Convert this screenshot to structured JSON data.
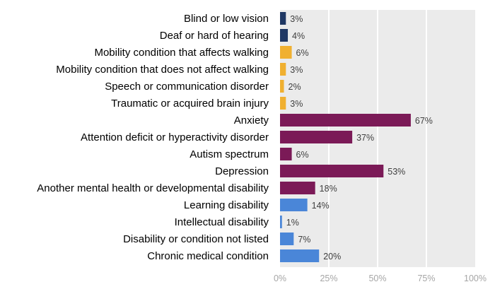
{
  "chart_data": {
    "type": "bar",
    "orientation": "horizontal",
    "categories": [
      "Blind or low vision",
      "Deaf or hard of hearing",
      "Mobility condition that affects walking",
      "Mobility condition that does not affect walking",
      "Speech or communication disorder",
      "Traumatic or acquired brain injury",
      "Anxiety",
      "Attention deficit or hyperactivity disorder",
      "Autism spectrum",
      "Depression",
      "Another mental health or developmental disability",
      "Learning disability",
      "Intellectual disability",
      "Disability or condition not listed",
      "Chronic medical condition"
    ],
    "values": [
      3,
      4,
      6,
      3,
      2,
      3,
      67,
      37,
      6,
      53,
      18,
      14,
      1,
      7,
      20
    ],
    "value_labels": [
      "3%",
      "4%",
      "6%",
      "3%",
      "2%",
      "3%",
      "67%",
      "37%",
      "6%",
      "53%",
      "18%",
      "14%",
      "1%",
      "7%",
      "20%"
    ],
    "bar_colors": [
      "#1f3864",
      "#1f3864",
      "#f0b030",
      "#f0b030",
      "#f0b030",
      "#f0b030",
      "#7b1a57",
      "#7b1a57",
      "#7b1a57",
      "#7b1a57",
      "#7b1a57",
      "#4a86d8",
      "#4a86d8",
      "#4a86d8",
      "#4a86d8"
    ],
    "x_ticks": [
      0,
      25,
      50,
      75,
      100
    ],
    "x_tick_labels": [
      "0%",
      "25%",
      "50%",
      "75%",
      "100%"
    ],
    "xlim": [
      0,
      100
    ],
    "grid": true,
    "plot_background": "#ebebeb",
    "gridline_color": "#ffffff",
    "title": "",
    "xlabel": "",
    "ylabel": ""
  }
}
